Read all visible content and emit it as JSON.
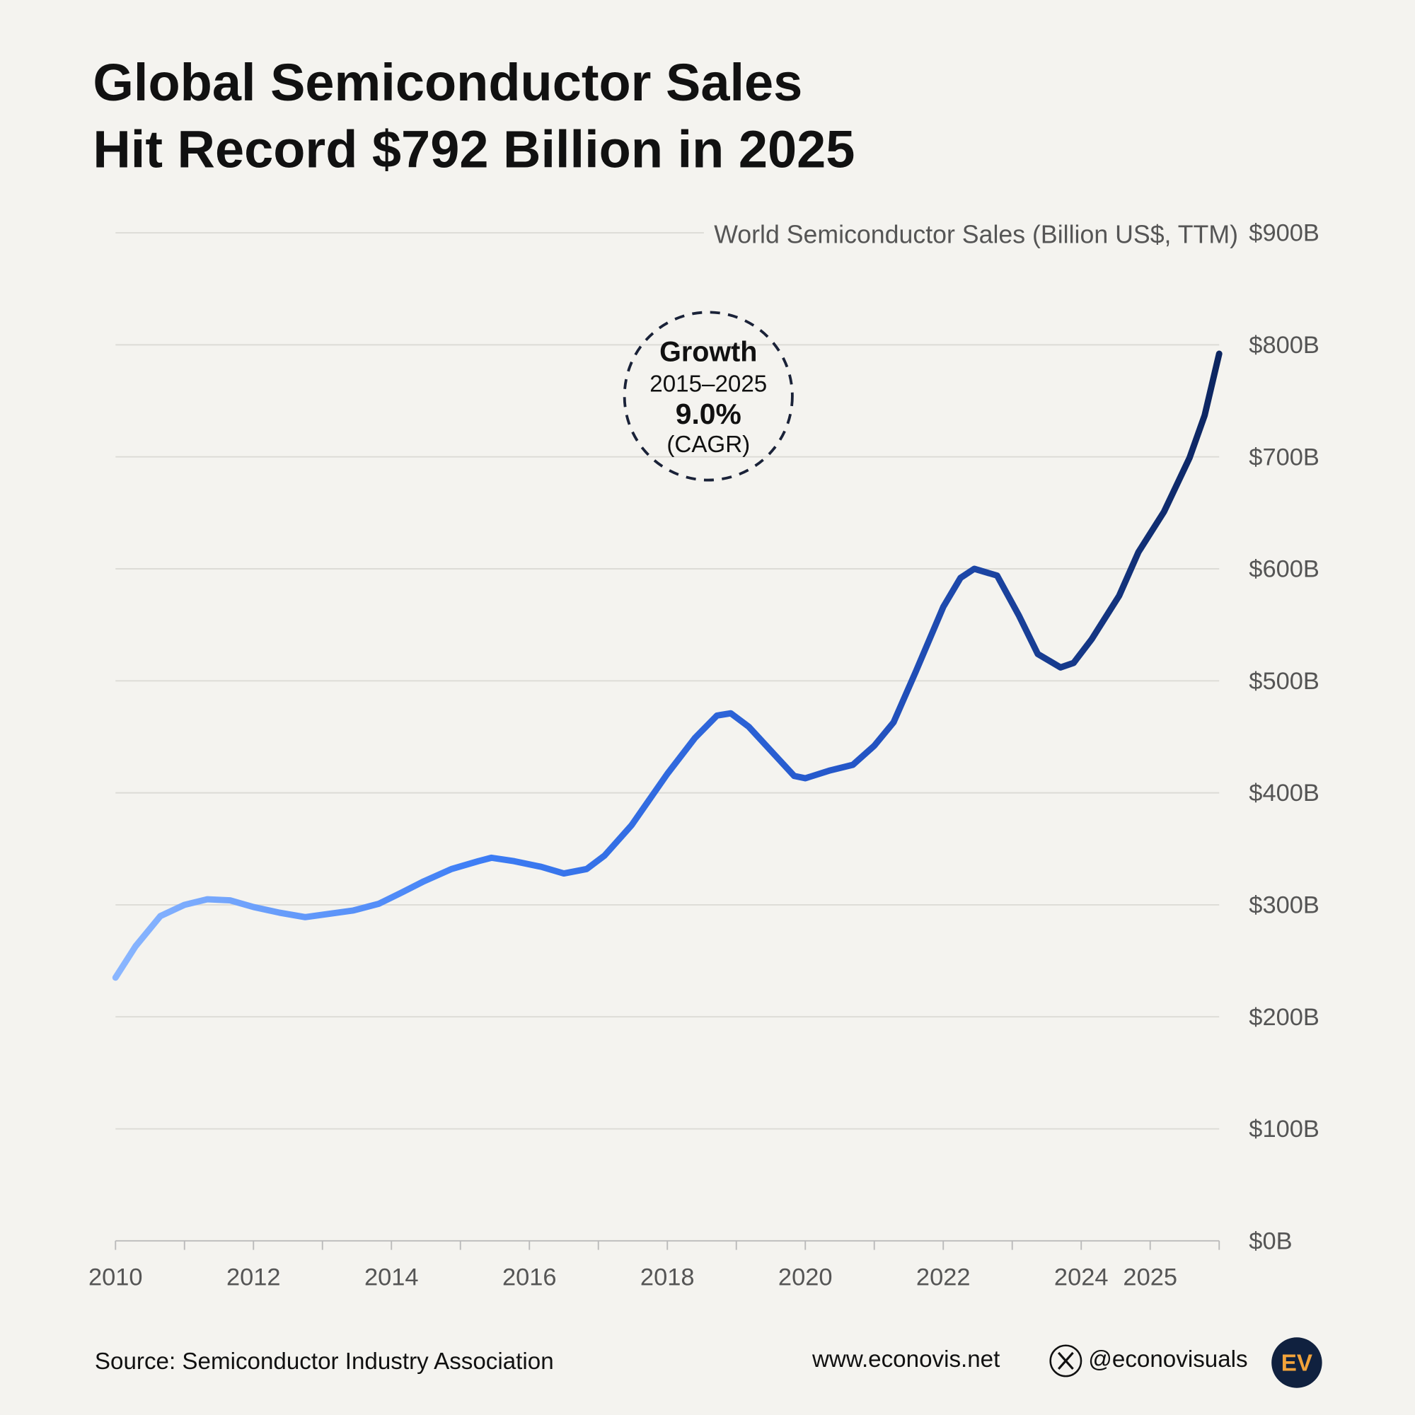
{
  "chart_data": {
    "type": "line",
    "title": [
      "Global Semiconductor Sales",
      "Hit Record $792 Billion in 2025"
    ],
    "y_label": "World Semiconductor Sales (Billion US$, TTM)",
    "annotation": {
      "heading": "Growth",
      "period": "2015–2025",
      "value": "9.0%",
      "note": "(CAGR)"
    },
    "source": "Source: Semiconductor Industry Association",
    "website": "www.econovis.net",
    "handle": "@econovisuals",
    "logo": "EV",
    "xlim": [
      2010,
      2026
    ],
    "xticks": [
      2010,
      2012,
      2014,
      2016,
      2018,
      2020,
      2022,
      2024,
      2025
    ],
    "xtick_marks": [
      2010,
      2011,
      2012,
      2013,
      2014,
      2015,
      2016,
      2017,
      2018,
      2019,
      2020,
      2021,
      2022,
      2023,
      2024,
      2025,
      2026
    ],
    "ylim": [
      0,
      900
    ],
    "yticks": [
      {
        "value": 0,
        "label": "$0B"
      },
      {
        "value": 100,
        "label": "$100B"
      },
      {
        "value": 200,
        "label": "$200B"
      },
      {
        "value": 300,
        "label": "$300B"
      },
      {
        "value": 400,
        "label": "$400B"
      },
      {
        "value": 500,
        "label": "$500B"
      },
      {
        "value": 600,
        "label": "$600B"
      },
      {
        "value": 700,
        "label": "$700B"
      },
      {
        "value": 800,
        "label": "$800B"
      },
      {
        "value": 900,
        "label": "$900B"
      }
    ],
    "grid": true,
    "series": [
      {
        "name": "World Semiconductor Sales",
        "gradient": [
          "#8ab6ff",
          "#3d7df5",
          "#2456c8",
          "#0c2560"
        ],
        "x": [
          2010.0,
          2010.29,
          2010.65,
          2011.0,
          2011.33,
          2011.66,
          2012.0,
          2012.38,
          2012.75,
          2013.1,
          2013.45,
          2013.82,
          2014.15,
          2014.47,
          2014.87,
          2015.26,
          2015.45,
          2015.78,
          2016.17,
          2016.5,
          2016.83,
          2017.09,
          2017.48,
          2018.0,
          2018.4,
          2018.72,
          2018.92,
          2019.18,
          2019.57,
          2019.84,
          2020.0,
          2020.36,
          2020.69,
          2021.0,
          2021.28,
          2021.6,
          2022.0,
          2022.25,
          2022.45,
          2022.78,
          2023.1,
          2023.37,
          2023.7,
          2023.89,
          2024.15,
          2024.55,
          2024.83,
          2025.2,
          2025.57,
          2025.79,
          2026.0
        ],
        "values": [
          235,
          263,
          290,
          300,
          305,
          304,
          298,
          293,
          289,
          292,
          295,
          301,
          311,
          321,
          332,
          339,
          342,
          339,
          334,
          328,
          332,
          344,
          371,
          417,
          449,
          469,
          471,
          459,
          433,
          415,
          413,
          420,
          425,
          442,
          463,
          508,
          566,
          592,
          600,
          594,
          558,
          524,
          512,
          516,
          537,
          576,
          615,
          651,
          699,
          737,
          792
        ]
      }
    ]
  }
}
